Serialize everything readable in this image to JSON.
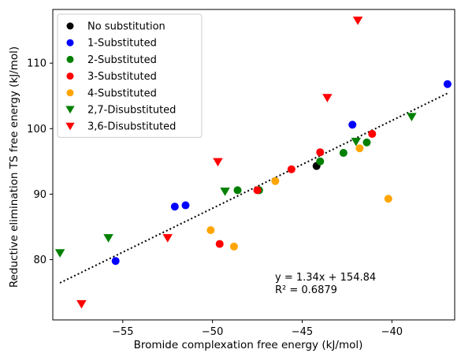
{
  "chart_data": {
    "type": "scatter",
    "xlabel": "Bromide complexation free energy (kJ/mol)",
    "ylabel": "Reductive elimination TS free energy (kJ/mol)",
    "xlim": [
      -58.9,
      -36.5
    ],
    "ylim": [
      70.8,
      118.2
    ],
    "xticks": [
      -55,
      -50,
      -45,
      -40
    ],
    "yticks": [
      80,
      90,
      100,
      110
    ],
    "xtick_labels": [
      "−55",
      "−50",
      "−45",
      "−40"
    ],
    "ytick_labels": [
      "80",
      "90",
      "100",
      "110"
    ],
    "grid": false,
    "legend_position": "top-left",
    "series": [
      {
        "name": "No substitution",
        "color": "#000000",
        "marker": "circle",
        "points": [
          [
            -44.2,
            94.3
          ]
        ]
      },
      {
        "name": "1-Substituted",
        "color": "#0000ff",
        "marker": "circle",
        "points": [
          [
            -55.4,
            79.8
          ],
          [
            -52.1,
            88.1
          ],
          [
            -51.5,
            88.3
          ],
          [
            -42.2,
            100.6
          ],
          [
            -36.9,
            106.8
          ]
        ]
      },
      {
        "name": "2-Substituted",
        "color": "#008000",
        "marker": "circle",
        "points": [
          [
            -48.6,
            90.6
          ],
          [
            -47.4,
            90.6
          ],
          [
            -44.0,
            95.0
          ],
          [
            -42.7,
            96.3
          ],
          [
            -41.4,
            97.9
          ]
        ]
      },
      {
        "name": "3-Substituted",
        "color": "#ff0000",
        "marker": "circle",
        "points": [
          [
            -49.6,
            82.4
          ],
          [
            -47.5,
            90.6
          ],
          [
            -45.6,
            93.8
          ],
          [
            -44.0,
            96.4
          ],
          [
            -41.1,
            99.2
          ]
        ]
      },
      {
        "name": "4-Substituted",
        "color": "#ffa500",
        "marker": "circle",
        "points": [
          [
            -50.1,
            84.5
          ],
          [
            -48.8,
            82.0
          ],
          [
            -46.5,
            92.0
          ],
          [
            -41.8,
            97.0
          ],
          [
            -40.2,
            89.3
          ]
        ]
      },
      {
        "name": "2,7-Disubstituted",
        "color": "#008000",
        "marker": "triangle_down",
        "points": [
          [
            -58.5,
            81.0
          ],
          [
            -55.8,
            83.3
          ],
          [
            -49.3,
            90.4
          ],
          [
            -42.0,
            98.0
          ],
          [
            -38.9,
            101.8
          ]
        ]
      },
      {
        "name": "3,6-Disubstituted",
        "color": "#ff0000",
        "marker": "triangle_down",
        "points": [
          [
            -57.3,
            73.2
          ],
          [
            -52.5,
            83.3
          ],
          [
            -49.7,
            94.9
          ],
          [
            -43.6,
            104.7
          ],
          [
            -41.9,
            116.5
          ]
        ]
      }
    ],
    "trendline": {
      "style": "dotted",
      "color": "#000000",
      "slope": 1.34,
      "intercept": 154.84,
      "x_range": [
        -58.5,
        -36.9
      ]
    },
    "annotation_lines": [
      "y = 1.34x + 154.84",
      "R² = 0.6879"
    ]
  }
}
